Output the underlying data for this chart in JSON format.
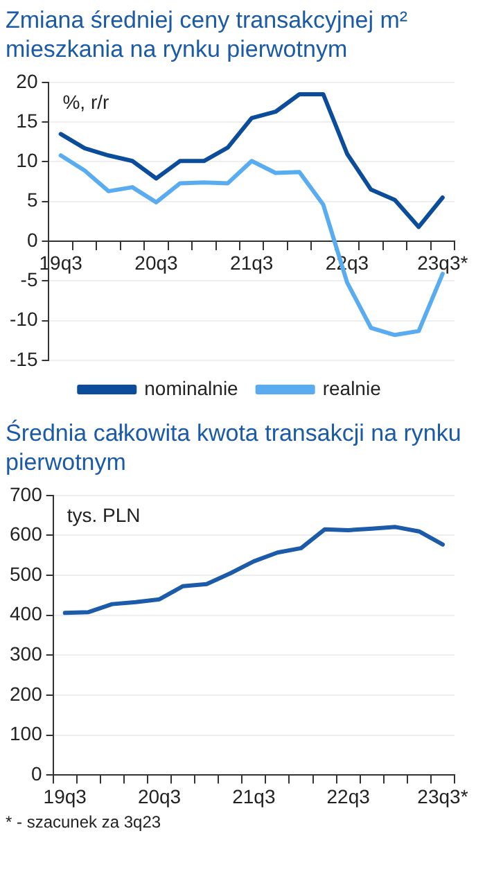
{
  "chart_data": [
    {
      "type": "line",
      "title": "Zmiana średniej ceny transakcyjnej m² mieszkania na rynku pierwotnym",
      "ylabel": "%, r/r",
      "categories": [
        "19q3",
        null,
        null,
        null,
        "20q3",
        null,
        null,
        null,
        "21q3",
        null,
        null,
        null,
        "22q3",
        null,
        null,
        null,
        "23q3*"
      ],
      "series": [
        {
          "name": "nominalnie",
          "color": "#0b4d9a",
          "values": [
            13.5,
            11.7,
            10.8,
            10.1,
            7.9,
            10.1,
            10.1,
            11.8,
            15.5,
            16.3,
            18.5,
            18.5,
            11.0,
            6.5,
            5.2,
            1.8,
            5.5
          ]
        },
        {
          "name": "realnie",
          "color": "#5aacf0",
          "values": [
            10.8,
            8.9,
            6.3,
            6.8,
            4.9,
            7.3,
            7.4,
            7.3,
            10.1,
            8.6,
            8.7,
            4.6,
            -5.2,
            -10.9,
            -11.8,
            -11.3,
            -4.1
          ]
        }
      ],
      "ylim": [
        -15,
        20
      ],
      "yticks": [
        -15,
        -10,
        -5,
        0,
        5,
        10,
        15,
        20
      ],
      "grid": "y",
      "legend": "bottom"
    },
    {
      "type": "line",
      "title": "Średnia całkowita kwota transakcji na rynku pierwotnym",
      "ylabel": "tys. PLN",
      "categories": [
        "19q3",
        null,
        null,
        null,
        "20q3",
        null,
        null,
        null,
        "21q3",
        null,
        null,
        null,
        "22q3",
        null,
        null,
        null,
        "23q3*"
      ],
      "series": [
        {
          "color": "#1c5aaa",
          "values": [
            406,
            408,
            428,
            433,
            440,
            473,
            478,
            505,
            535,
            557,
            568,
            615,
            613,
            617,
            621,
            610,
            577
          ]
        }
      ],
      "ylim": [
        0,
        700
      ],
      "yticks": [
        0,
        100,
        200,
        300,
        400,
        500,
        600,
        700
      ],
      "grid": "y",
      "legend": false,
      "annotations": [
        "* - szacunek za 3q23"
      ]
    }
  ]
}
